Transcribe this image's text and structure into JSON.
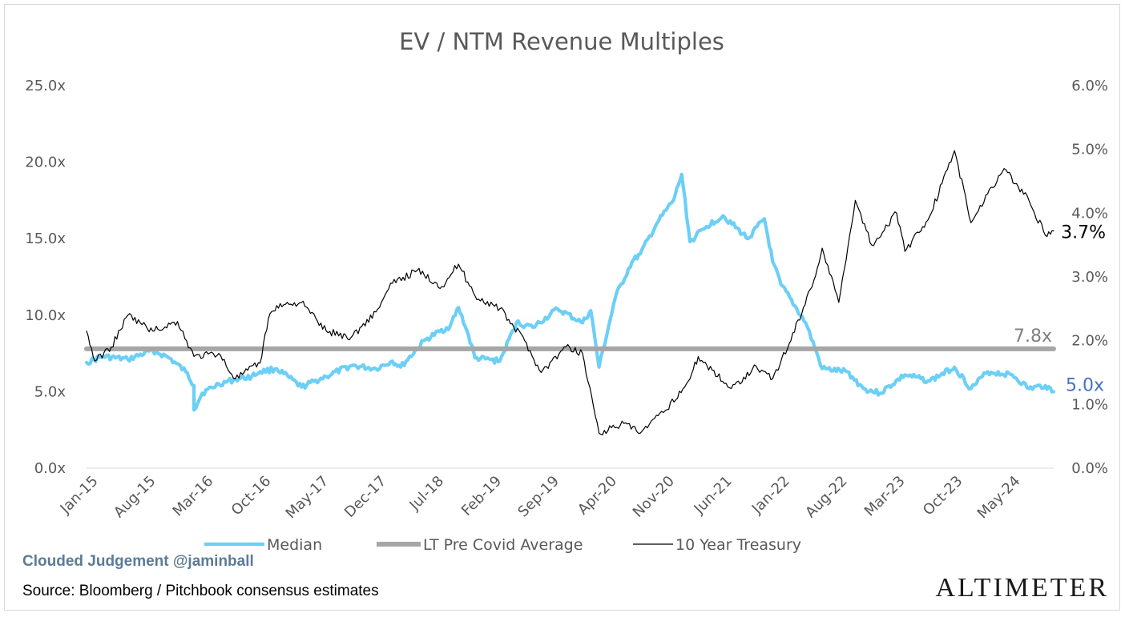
{
  "chart_data": {
    "type": "line",
    "title": "EV / NTM Revenue Multiples",
    "x_tick_labels": [
      "Jan-15",
      "Aug-15",
      "Mar-16",
      "Oct-16",
      "May-17",
      "Dec-17",
      "Jul-18",
      "Feb-19",
      "Sep-19",
      "Apr-20",
      "Nov-20",
      "Jun-21",
      "Jan-22",
      "Aug-22",
      "Mar-23",
      "Oct-23",
      "May-24"
    ],
    "x_range": [
      "2015-01",
      "2024-10"
    ],
    "y_left": {
      "ticks": [
        "0.0x",
        "5.0x",
        "10.0x",
        "15.0x",
        "20.0x",
        "25.0x"
      ],
      "range": [
        0,
        25
      ]
    },
    "y_right": {
      "ticks": [
        "0.0%",
        "1.0%",
        "2.0%",
        "3.0%",
        "4.0%",
        "5.0%",
        "6.0%"
      ],
      "range": [
        0,
        6
      ]
    },
    "legend_position": "bottom",
    "series": [
      {
        "name": "Median",
        "axis": "left",
        "color": "#6ccff6",
        "points": [
          [
            "2015-01",
            6.9
          ],
          [
            "2015-03",
            7.3
          ],
          [
            "2015-06",
            7.1
          ],
          [
            "2015-09",
            7.7
          ],
          [
            "2015-11",
            7.2
          ],
          [
            "2016-01",
            6.3
          ],
          [
            "2016-02",
            5.4
          ],
          [
            "2016-02",
            3.8
          ],
          [
            "2016-03",
            4.9
          ],
          [
            "2016-05",
            5.5
          ],
          [
            "2016-07",
            5.8
          ],
          [
            "2016-09",
            6.0
          ],
          [
            "2016-10",
            6.3
          ],
          [
            "2016-12",
            6.5
          ],
          [
            "2017-03",
            5.3
          ],
          [
            "2017-06",
            6.0
          ],
          [
            "2017-09",
            6.7
          ],
          [
            "2017-12",
            6.5
          ],
          [
            "2018-02",
            7.0
          ],
          [
            "2018-03",
            6.6
          ],
          [
            "2018-06",
            8.4
          ],
          [
            "2018-09",
            9.3
          ],
          [
            "2018-10",
            10.5
          ],
          [
            "2018-11",
            9.0
          ],
          [
            "2018-12",
            7.2
          ],
          [
            "2019-03",
            7.0
          ],
          [
            "2019-05",
            9.5
          ],
          [
            "2019-07",
            9.2
          ],
          [
            "2019-10",
            10.4
          ],
          [
            "2020-01",
            9.5
          ],
          [
            "2020-02",
            10.3
          ],
          [
            "2020-03",
            6.6
          ],
          [
            "2020-05",
            11.2
          ],
          [
            "2020-07",
            13.5
          ],
          [
            "2020-08",
            14.0
          ],
          [
            "2020-10",
            16.0
          ],
          [
            "2020-12",
            17.5
          ],
          [
            "2021-01",
            19.2
          ],
          [
            "2021-02",
            14.8
          ],
          [
            "2021-04",
            15.8
          ],
          [
            "2021-06",
            16.5
          ],
          [
            "2021-09",
            15.0
          ],
          [
            "2021-11",
            16.3
          ],
          [
            "2021-12",
            13.5
          ],
          [
            "2022-01",
            12.0
          ],
          [
            "2022-04",
            9.5
          ],
          [
            "2022-06",
            6.5
          ],
          [
            "2022-09",
            6.3
          ],
          [
            "2022-11",
            5.2
          ],
          [
            "2023-01",
            4.9
          ],
          [
            "2023-04",
            6.1
          ],
          [
            "2023-07",
            5.7
          ],
          [
            "2023-10",
            6.6
          ],
          [
            "2023-12",
            5.2
          ],
          [
            "2024-02",
            6.3
          ],
          [
            "2024-05",
            6.1
          ],
          [
            "2024-07",
            5.2
          ],
          [
            "2024-09",
            5.4
          ],
          [
            "2024-10",
            5.0
          ]
        ]
      },
      {
        "name": "LT Pre Covid Average",
        "axis": "left",
        "color": "#a6a6a6",
        "points": [
          [
            "2015-01",
            7.8
          ],
          [
            "2024-10",
            7.8
          ]
        ]
      },
      {
        "name": "10 Year Treasury",
        "axis": "right",
        "color": "#000000",
        "points": [
          [
            "2015-01",
            2.15
          ],
          [
            "2015-02",
            1.68
          ],
          [
            "2015-04",
            1.9
          ],
          [
            "2015-06",
            2.4
          ],
          [
            "2015-09",
            2.15
          ],
          [
            "2015-12",
            2.3
          ],
          [
            "2016-02",
            1.75
          ],
          [
            "2016-05",
            1.8
          ],
          [
            "2016-07",
            1.4
          ],
          [
            "2016-10",
            1.65
          ],
          [
            "2016-11",
            2.35
          ],
          [
            "2016-12",
            2.55
          ],
          [
            "2017-03",
            2.6
          ],
          [
            "2017-06",
            2.15
          ],
          [
            "2017-09",
            2.05
          ],
          [
            "2017-12",
            2.45
          ],
          [
            "2018-02",
            2.9
          ],
          [
            "2018-05",
            3.1
          ],
          [
            "2018-08",
            2.85
          ],
          [
            "2018-10",
            3.2
          ],
          [
            "2018-12",
            2.7
          ],
          [
            "2019-03",
            2.5
          ],
          [
            "2019-06",
            2.0
          ],
          [
            "2019-08",
            1.5
          ],
          [
            "2019-11",
            1.9
          ],
          [
            "2020-01",
            1.8
          ],
          [
            "2020-03",
            0.55
          ],
          [
            "2020-06",
            0.7
          ],
          [
            "2020-08",
            0.55
          ],
          [
            "2020-11",
            0.9
          ],
          [
            "2021-02",
            1.4
          ],
          [
            "2021-03",
            1.75
          ],
          [
            "2021-07",
            1.25
          ],
          [
            "2021-10",
            1.6
          ],
          [
            "2021-12",
            1.4
          ],
          [
            "2022-02",
            1.95
          ],
          [
            "2022-05",
            2.95
          ],
          [
            "2022-06",
            3.45
          ],
          [
            "2022-08",
            2.6
          ],
          [
            "2022-10",
            4.2
          ],
          [
            "2022-12",
            3.5
          ],
          [
            "2023-03",
            4.0
          ],
          [
            "2023-04",
            3.4
          ],
          [
            "2023-07",
            3.95
          ],
          [
            "2023-10",
            4.98
          ],
          [
            "2023-12",
            3.85
          ],
          [
            "2024-02",
            4.3
          ],
          [
            "2024-04",
            4.7
          ],
          [
            "2024-07",
            4.2
          ],
          [
            "2024-09",
            3.65
          ],
          [
            "2024-10",
            3.72
          ]
        ]
      }
    ],
    "data_labels": [
      {
        "series": "LT Pre Covid Average",
        "text": "7.8x",
        "color": "#7f7f7f"
      },
      {
        "series": "Median",
        "text": "5.0x",
        "color": "#4472c4"
      },
      {
        "series": "10 Year Treasury",
        "text": "3.7%",
        "color": "#000000"
      }
    ]
  },
  "footer": {
    "credit": "Clouded Judgement @jaminball",
    "source": "Source: Bloomberg / Pitchbook consensus estimates",
    "brand": "ALTIMETER"
  }
}
